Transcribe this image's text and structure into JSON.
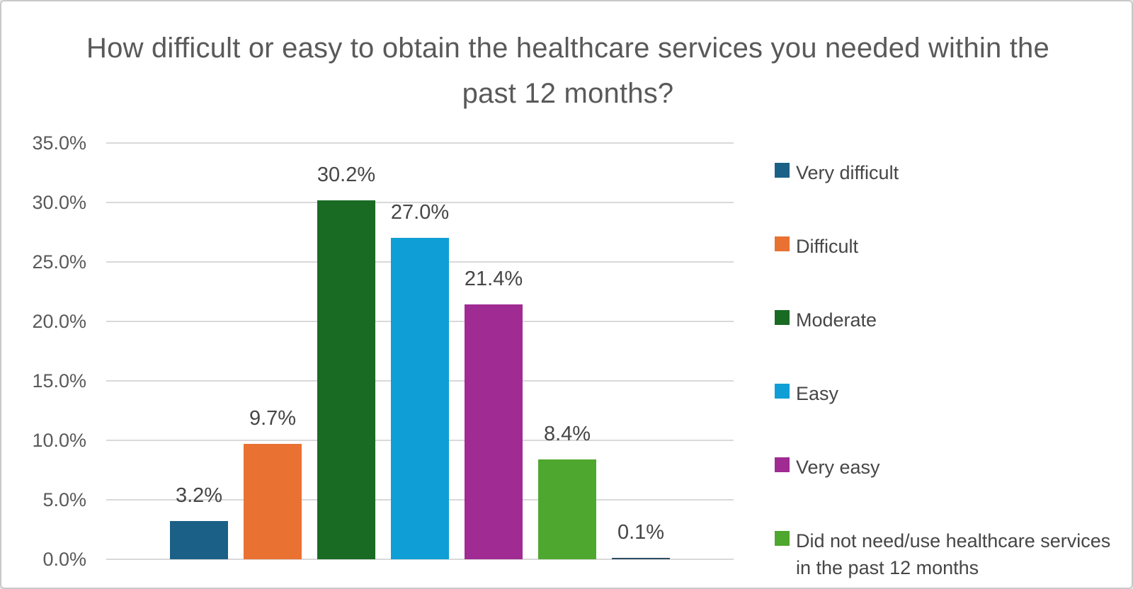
{
  "title": "How difficult or easy to obtain the healthcare services you needed within the past 12 months?",
  "chart_data": {
    "type": "bar",
    "title": "How difficult or easy to obtain the healthcare services you needed within the past 12 months?",
    "categories": [
      "Very difficult",
      "Difficult",
      "Moderate",
      "Easy",
      "Very easy",
      "Did not need/use healthcare services in the past 12 months",
      ""
    ],
    "values": [
      3.2,
      9.7,
      30.2,
      27.0,
      21.4,
      8.4,
      0.1
    ],
    "data_labels": [
      "3.2%",
      "9.7%",
      "30.2%",
      "27.0%",
      "21.4%",
      "8.4%",
      "0.1%"
    ],
    "bar_colors": [
      "#1B6086",
      "#E97132",
      "#196B24",
      "#0F9ED5",
      "#A02B93",
      "#4EA72E",
      "#2E4D63"
    ],
    "xlabel": "",
    "ylabel": "",
    "ylim": [
      0,
      35
    ],
    "ytick_values": [
      0,
      5,
      10,
      15,
      20,
      25,
      30,
      35
    ],
    "ytick_labels": [
      "0.0%",
      "5.0%",
      "10.0%",
      "15.0%",
      "20.0%",
      "25.0%",
      "30.0%",
      "35.0%"
    ],
    "grid": true,
    "legend_position": "right",
    "legend": [
      {
        "label": "Very difficult",
        "color": "#1B6086"
      },
      {
        "label": "Difficult",
        "color": "#E97132"
      },
      {
        "label": "Moderate",
        "color": "#196B24"
      },
      {
        "label": "Easy",
        "color": "#0F9ED5"
      },
      {
        "label": "Very easy",
        "color": "#A02B93"
      },
      {
        "label": "Did not need/use healthcare services in the past 12 months",
        "color": "#4EA72E"
      }
    ],
    "colors": {
      "gridline": "#d9d9d9",
      "title_text": "#595959",
      "tick_text": "#595959",
      "label_text": "#464646"
    }
  }
}
